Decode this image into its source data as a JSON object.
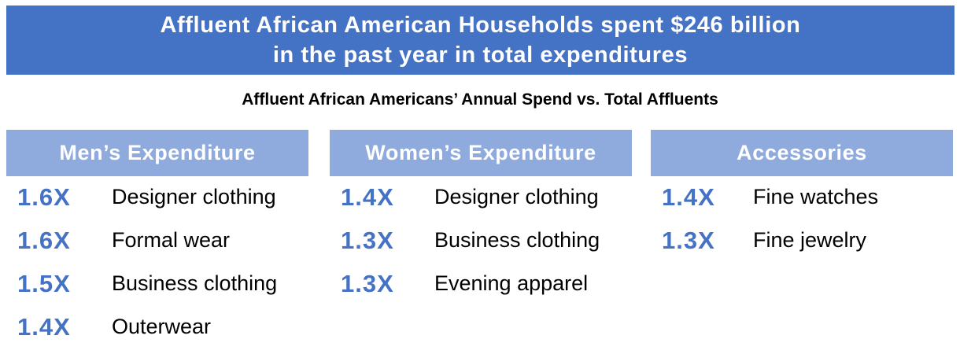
{
  "banner": {
    "line1": "Affluent African American Households spent $246 billion",
    "line2": "in the past year in total expenditures"
  },
  "subtitle": "Affluent African Americans’ Annual Spend vs. Total Affluents",
  "colors": {
    "banner_bg": "#4472c4",
    "header_bg": "#8faadc",
    "multiplier_text": "#4472c4"
  },
  "columns": [
    {
      "header": "Men’s Expenditure",
      "items": [
        {
          "multiplier": "1.6X",
          "label": "Designer clothing"
        },
        {
          "multiplier": "1.6X",
          "label": "Formal wear"
        },
        {
          "multiplier": "1.5X",
          "label": "Business clothing"
        },
        {
          "multiplier": "1.4X",
          "label": "Outerwear"
        }
      ]
    },
    {
      "header": "Women’s Expenditure",
      "items": [
        {
          "multiplier": "1.4X",
          "label": "Designer clothing"
        },
        {
          "multiplier": "1.3X",
          "label": "Business clothing"
        },
        {
          "multiplier": "1.3X",
          "label": "Evening apparel"
        }
      ]
    },
    {
      "header": "Accessories",
      "items": [
        {
          "multiplier": "1.4X",
          "label": "Fine watches"
        },
        {
          "multiplier": "1.3X",
          "label": "Fine jewelry"
        }
      ]
    }
  ]
}
